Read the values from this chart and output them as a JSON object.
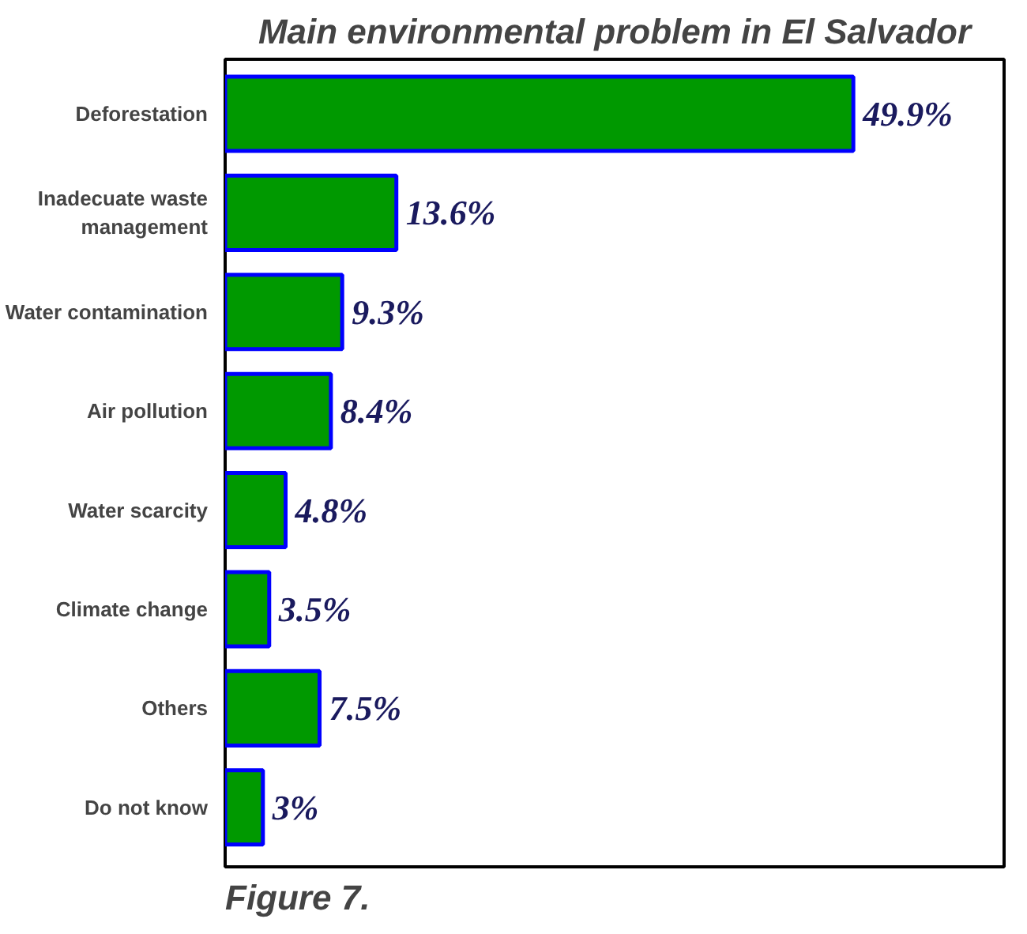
{
  "chart_data": {
    "type": "bar",
    "orientation": "horizontal",
    "title": "Main environmental problem in El Salvador",
    "categories": [
      "Deforestation",
      "Inadecuate waste\nmanagement",
      "Water contamination",
      "Air pollution",
      "Water scarcity",
      "Climate change",
      "Others",
      "Do not know"
    ],
    "values": [
      49.9,
      13.6,
      9.3,
      8.4,
      4.8,
      3.5,
      7.5,
      3
    ],
    "value_labels": [
      "49.9%",
      "13.6%",
      "9.3%",
      "8.4%",
      "4.8%",
      "3.5%",
      "7.5%",
      "3%"
    ],
    "color": "#009900",
    "grid": false,
    "annotations": [
      "Figure 7."
    ]
  }
}
